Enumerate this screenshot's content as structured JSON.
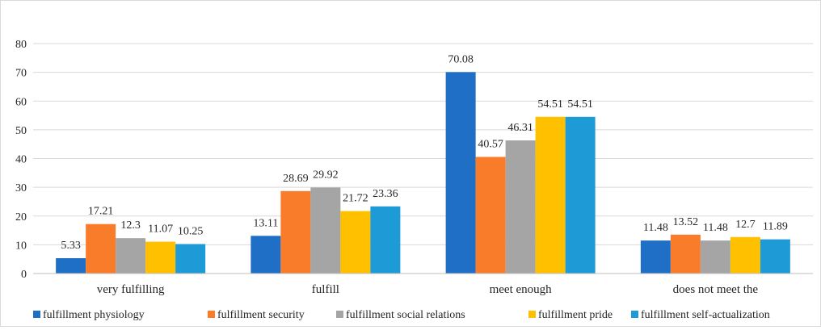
{
  "chart_data": {
    "type": "bar",
    "categories": [
      "very fulfilling",
      "fulfill",
      "meet enough",
      "does not meet the"
    ],
    "series": [
      {
        "name": "fulfillment physiology",
        "color": "#1f6fc6",
        "values": [
          5.33,
          13.11,
          70.08,
          11.48
        ],
        "labels": [
          "5.33",
          "13.11",
          "70.08",
          "11.48"
        ]
      },
      {
        "name": "fulfillment security",
        "color": "#f97c2b",
        "values": [
          17.21,
          28.69,
          40.57,
          13.52
        ],
        "labels": [
          "17.21",
          "28.69",
          "40.57",
          "13.52"
        ]
      },
      {
        "name": "fulfillment social relations",
        "color": "#a5a5a5",
        "values": [
          12.3,
          29.92,
          46.31,
          11.48
        ],
        "labels": [
          "12.3",
          "29.92",
          "46.31",
          "11.48"
        ]
      },
      {
        "name": "fulfillment pride",
        "color": "#ffc000",
        "values": [
          11.07,
          21.72,
          54.51,
          12.7
        ],
        "labels": [
          "11.07",
          "21.72",
          "54.51",
          "12.7"
        ]
      },
      {
        "name": "fulfillment self-actualization",
        "color": "#1e9ad6",
        "values": [
          10.25,
          23.36,
          54.51,
          11.89
        ],
        "labels": [
          "10.25",
          "23.36",
          "54.51",
          "11.89"
        ]
      }
    ],
    "yticks": [
      "0",
      "10",
      "20",
      "30",
      "40",
      "50",
      "60",
      "70",
      "80"
    ],
    "ylim": [
      0,
      80
    ],
    "grid": true,
    "legend_position": "bottom"
  }
}
